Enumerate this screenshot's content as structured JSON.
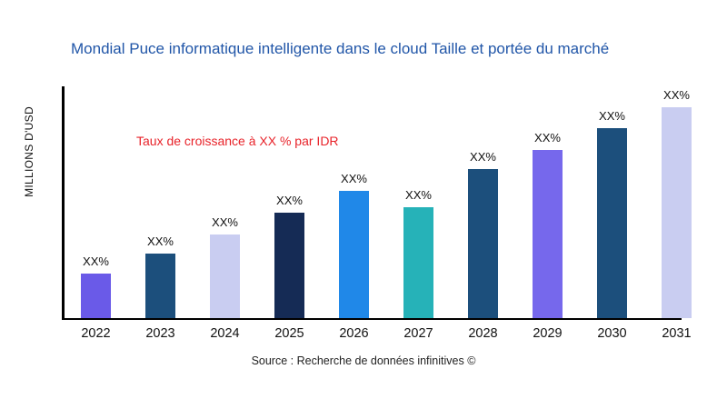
{
  "chart_data": {
    "type": "bar",
    "title": "Mondial Puce informatique intelligente dans le cloud Taille et portée du marché",
    "ylabel": "MILLIONS D'USD",
    "annotation": "Taux de croissance à XX % par IDR",
    "source": "Source : Recherche de données infinitives ©",
    "categories": [
      "2022",
      "2023",
      "2024",
      "2025",
      "2026",
      "2027",
      "2028",
      "2029",
      "2030",
      "2031"
    ],
    "values": [
      49,
      71,
      92,
      116,
      140,
      122,
      164,
      185,
      209,
      232
    ],
    "value_labels": [
      "XX%",
      "XX%",
      "XX%",
      "XX%",
      "XX%",
      "XX%",
      "XX%",
      "XX%",
      "XX%",
      "XX%"
    ],
    "bar_colors": [
      "#6A5AE8",
      "#1C4F7C",
      "#C9CDF1",
      "#152B55",
      "#2088E8",
      "#26B2B8",
      "#1C4F7C",
      "#7668EC",
      "#1C4F7C",
      "#C9CDF1"
    ],
    "ylim": [
      0,
      232
    ],
    "grid": false,
    "legend": "none",
    "title_color": "#2156A8",
    "annotation_color": "#E8232A"
  }
}
